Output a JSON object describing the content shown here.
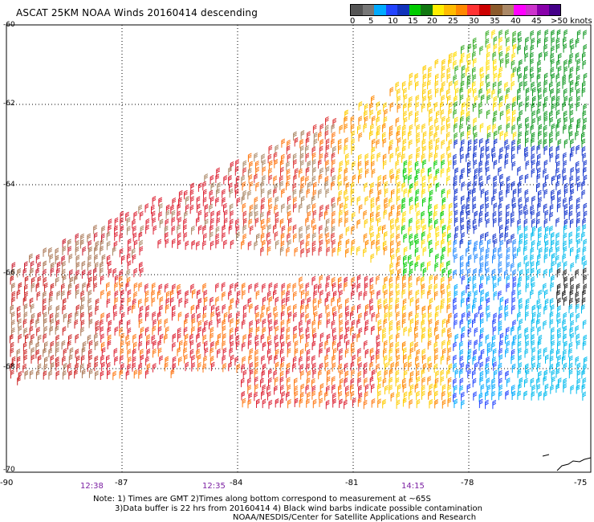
{
  "title": "ASCAT 25KM NOAA Winds 20160414 descending",
  "legend": {
    "colors": [
      "#555555",
      "#777777",
      "#00aaff",
      "#2244ff",
      "#1133bb",
      "#00cc00",
      "#117711",
      "#ffee00",
      "#ffbb00",
      "#ff8800",
      "#ff3333",
      "#cc0000",
      "#8b5a2b",
      "#aa8866",
      "#ff00ff",
      "#cc33cc",
      "#8800aa",
      "#440088"
    ],
    "labels": [
      "0",
      "5",
      "10",
      "15",
      "20",
      "25",
      "30",
      "35",
      "40",
      "45",
      ">50 knots"
    ]
  },
  "map": {
    "lat_labels": [
      "-60",
      "-62",
      "-64",
      "-66",
      "-68",
      "-70"
    ],
    "lon_labels": [
      "-90",
      "-87",
      "-84",
      "-81",
      "-78",
      "-75"
    ],
    "time_labels": [
      "12:38",
      "12:35",
      "14:15"
    ]
  },
  "notes": {
    "line1": "Note: 1) Times are GMT 2)Times along bottom correspond to measurement at ~65S",
    "line2": "3)Data buffer is 22 hrs from 20160414 4) Black wind barbs indicate possible contamination",
    "line3": "NOAA/NESDIS/Center for Satellite Applications and Research"
  }
}
